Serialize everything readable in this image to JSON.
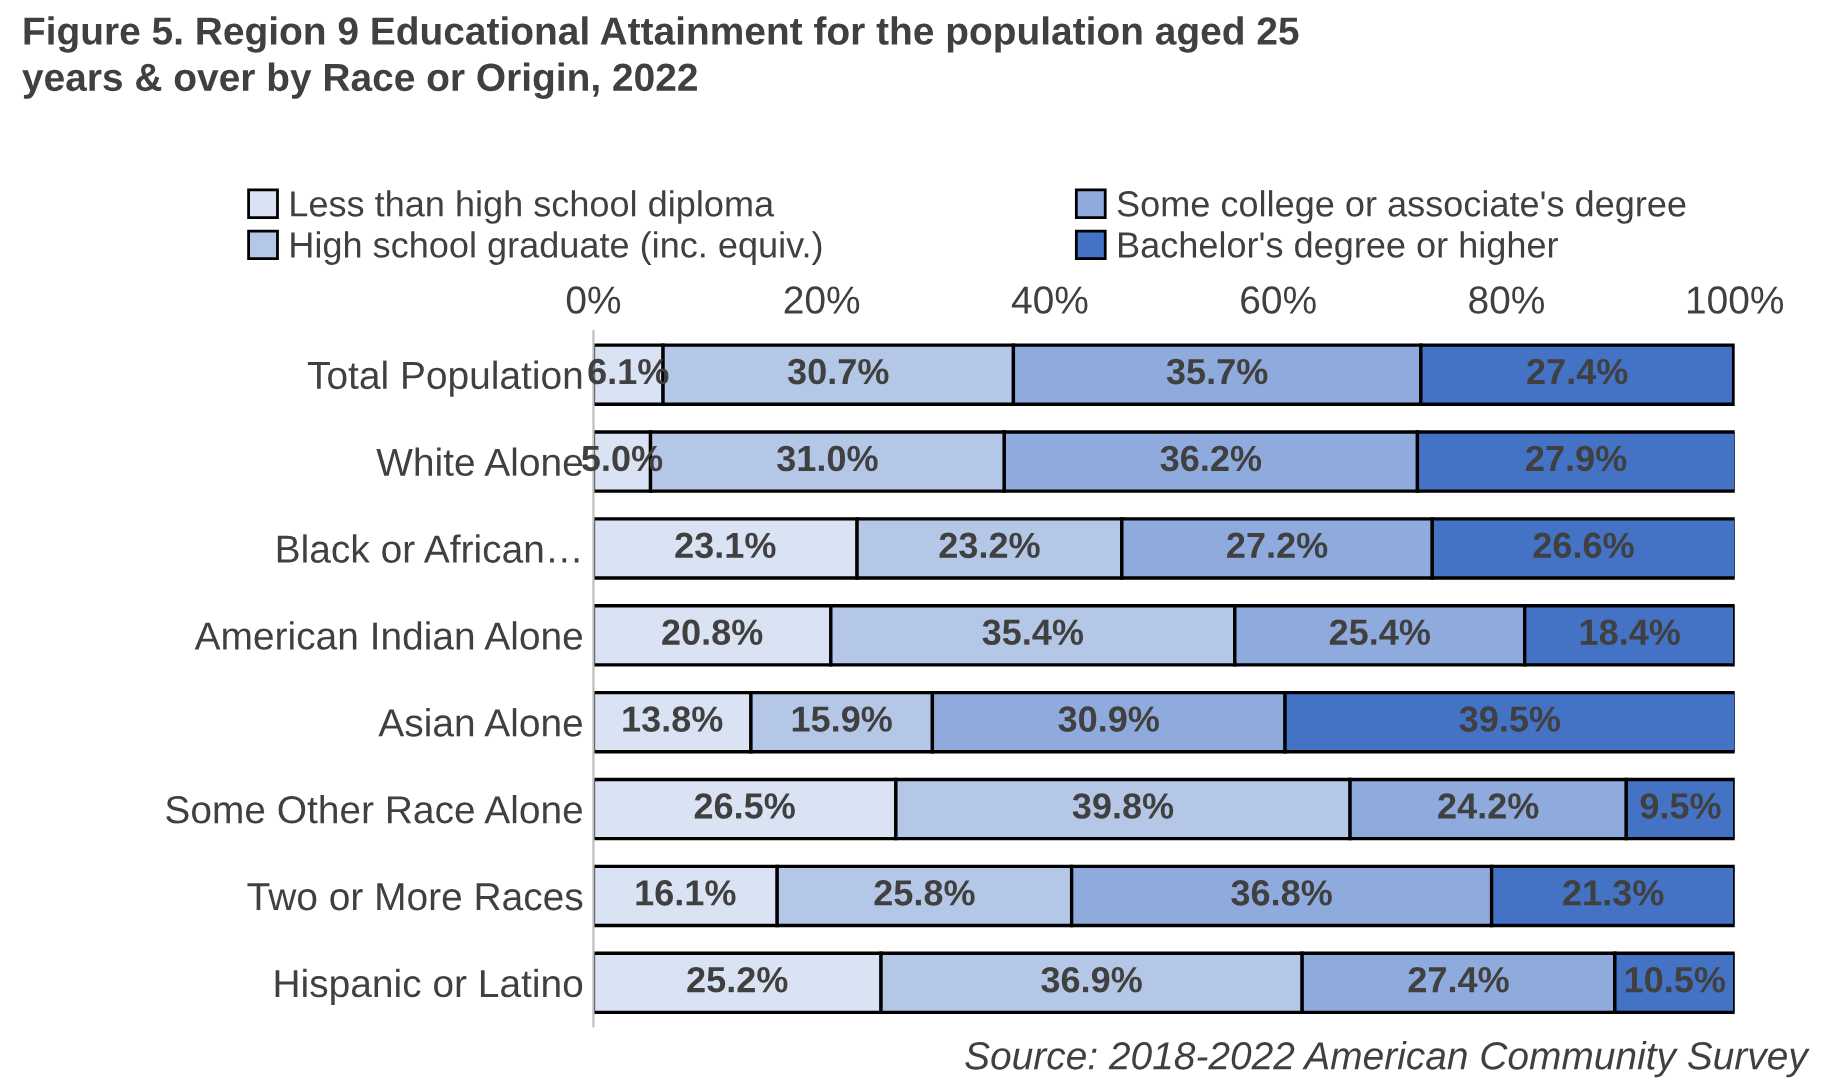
{
  "chart_data": {
    "type": "bar",
    "orientation": "horizontal",
    "stacked": true,
    "title": "Figure 5. Region 9 Educational Attainment for the population aged 25\nyears & over by Race or Origin, 2022",
    "categories": [
      "Total Population",
      "White Alone",
      "Black or African…",
      "American Indian Alone",
      "Asian Alone",
      "Some Other Race Alone",
      "Two or More Races",
      "Hispanic or Latino"
    ],
    "series": [
      {
        "name": "Less than high school diploma",
        "color": "#dae3f3",
        "values": [
          6.1,
          5.0,
          23.1,
          20.8,
          13.8,
          26.5,
          16.1,
          25.2
        ],
        "value_labels": [
          "6.1%",
          "5.0%",
          "23.1%",
          "20.8%",
          "13.8%",
          "26.5%",
          "16.1%",
          "25.2%"
        ]
      },
      {
        "name": "High school graduate (inc. equiv.)",
        "color": "#b4c7e7",
        "values": [
          30.7,
          31.0,
          23.2,
          35.4,
          15.9,
          39.8,
          25.8,
          36.9
        ],
        "value_labels": [
          "30.7%",
          "31.0%",
          "23.2%",
          "35.4%",
          "15.9%",
          "39.8%",
          "25.8%",
          "36.9%"
        ]
      },
      {
        "name": "Some college or associate's degree",
        "color": "#8faadc",
        "values": [
          35.7,
          36.2,
          27.2,
          25.4,
          30.9,
          24.2,
          36.8,
          27.4
        ],
        "value_labels": [
          "35.7%",
          "36.2%",
          "27.2%",
          "25.4%",
          "30.9%",
          "24.2%",
          "36.8%",
          "27.4%"
        ]
      },
      {
        "name": "Bachelor's degree or higher",
        "color": "#4472c4",
        "values": [
          27.4,
          27.9,
          26.6,
          18.4,
          39.5,
          9.5,
          21.3,
          10.5
        ],
        "value_labels": [
          "27.4%",
          "27.9%",
          "26.6%",
          "18.4%",
          "39.5%",
          "9.5%",
          "21.3%",
          "10.5%"
        ]
      }
    ],
    "xlim": [
      0,
      100
    ],
    "xticks": [
      {
        "value": 0,
        "label": "0%"
      },
      {
        "value": 20,
        "label": "20%"
      },
      {
        "value": 40,
        "label": "40%"
      },
      {
        "value": 60,
        "label": "60%"
      },
      {
        "value": 80,
        "label": "80%"
      },
      {
        "value": 100,
        "label": "100%"
      }
    ],
    "legend": "top",
    "grid": false,
    "annotations": [
      "Source: 2018-2022 American Community Survey"
    ]
  }
}
